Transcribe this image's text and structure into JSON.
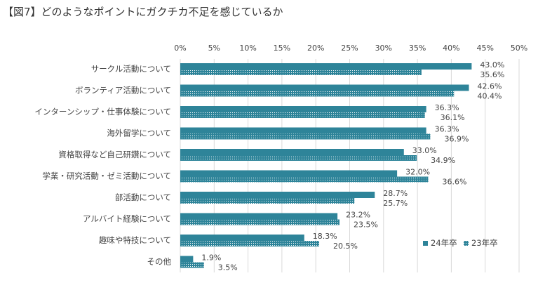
{
  "title": "【図7】どのようなポイントにガクチカ不足を感じているか",
  "chart_data": {
    "type": "bar",
    "orientation": "horizontal",
    "categories": [
      "サークル活動について",
      "ボランティア活動について",
      "インターンシップ・仕事体験について",
      "海外留学について",
      "資格取得など自己研鑽について",
      "学業・研究活動・ゼミ活動について",
      "部活動について",
      "アルバイト経験について",
      "趣味や特技について",
      "その他"
    ],
    "series": [
      {
        "name": "24年卒",
        "values": [
          43.0,
          42.6,
          36.3,
          36.3,
          33.0,
          32.0,
          28.7,
          23.2,
          18.3,
          1.9
        ],
        "color": "#2e8499",
        "fill": "solid"
      },
      {
        "name": "23年卒",
        "values": [
          35.6,
          40.4,
          36.1,
          36.9,
          34.9,
          36.6,
          25.7,
          23.5,
          20.5,
          3.5
        ],
        "color": "#2e8499",
        "fill": "dotted"
      }
    ],
    "xlim": [
      0,
      50
    ],
    "xticks": [
      "0%",
      "5%",
      "10%",
      "15%",
      "20%",
      "25%",
      "30%",
      "35%",
      "40%",
      "45%",
      "50%"
    ],
    "grid": true,
    "legend": "bottom-right"
  }
}
